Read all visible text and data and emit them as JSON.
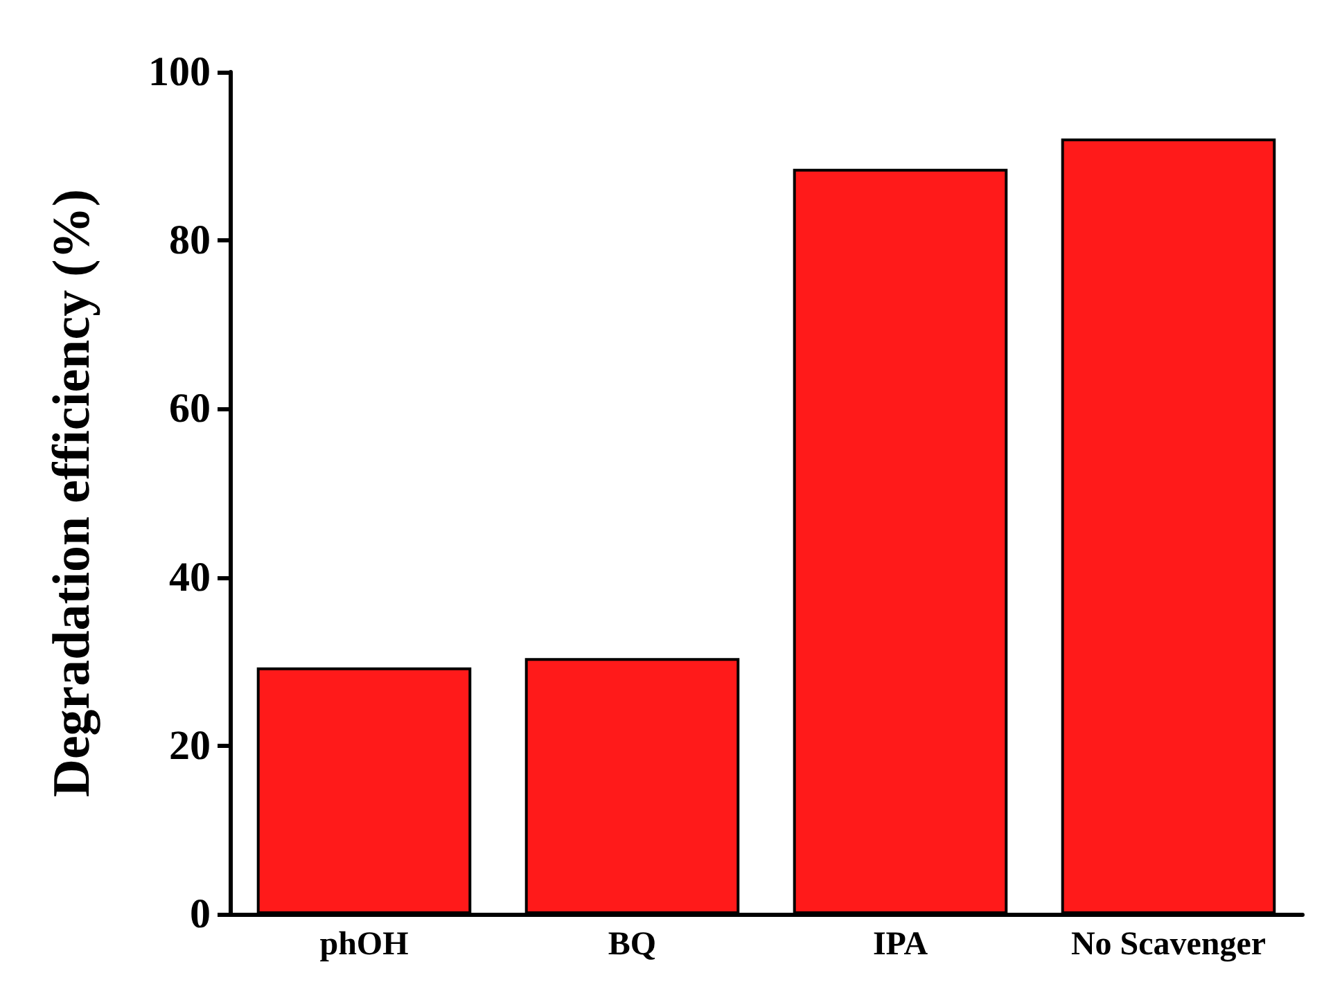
{
  "chart_data": {
    "type": "bar",
    "ylabel": "Degradation efficiency (%)",
    "categories": [
      "phOH",
      "BQ",
      "IPA",
      "No Scavenger"
    ],
    "values": [
      29.3,
      30.4,
      88.5,
      92.1
    ],
    "color": "#ff1a1a",
    "ylim": [
      0,
      100
    ],
    "yticks": [
      0,
      20,
      40,
      60,
      80,
      100
    ],
    "grid": false
  }
}
